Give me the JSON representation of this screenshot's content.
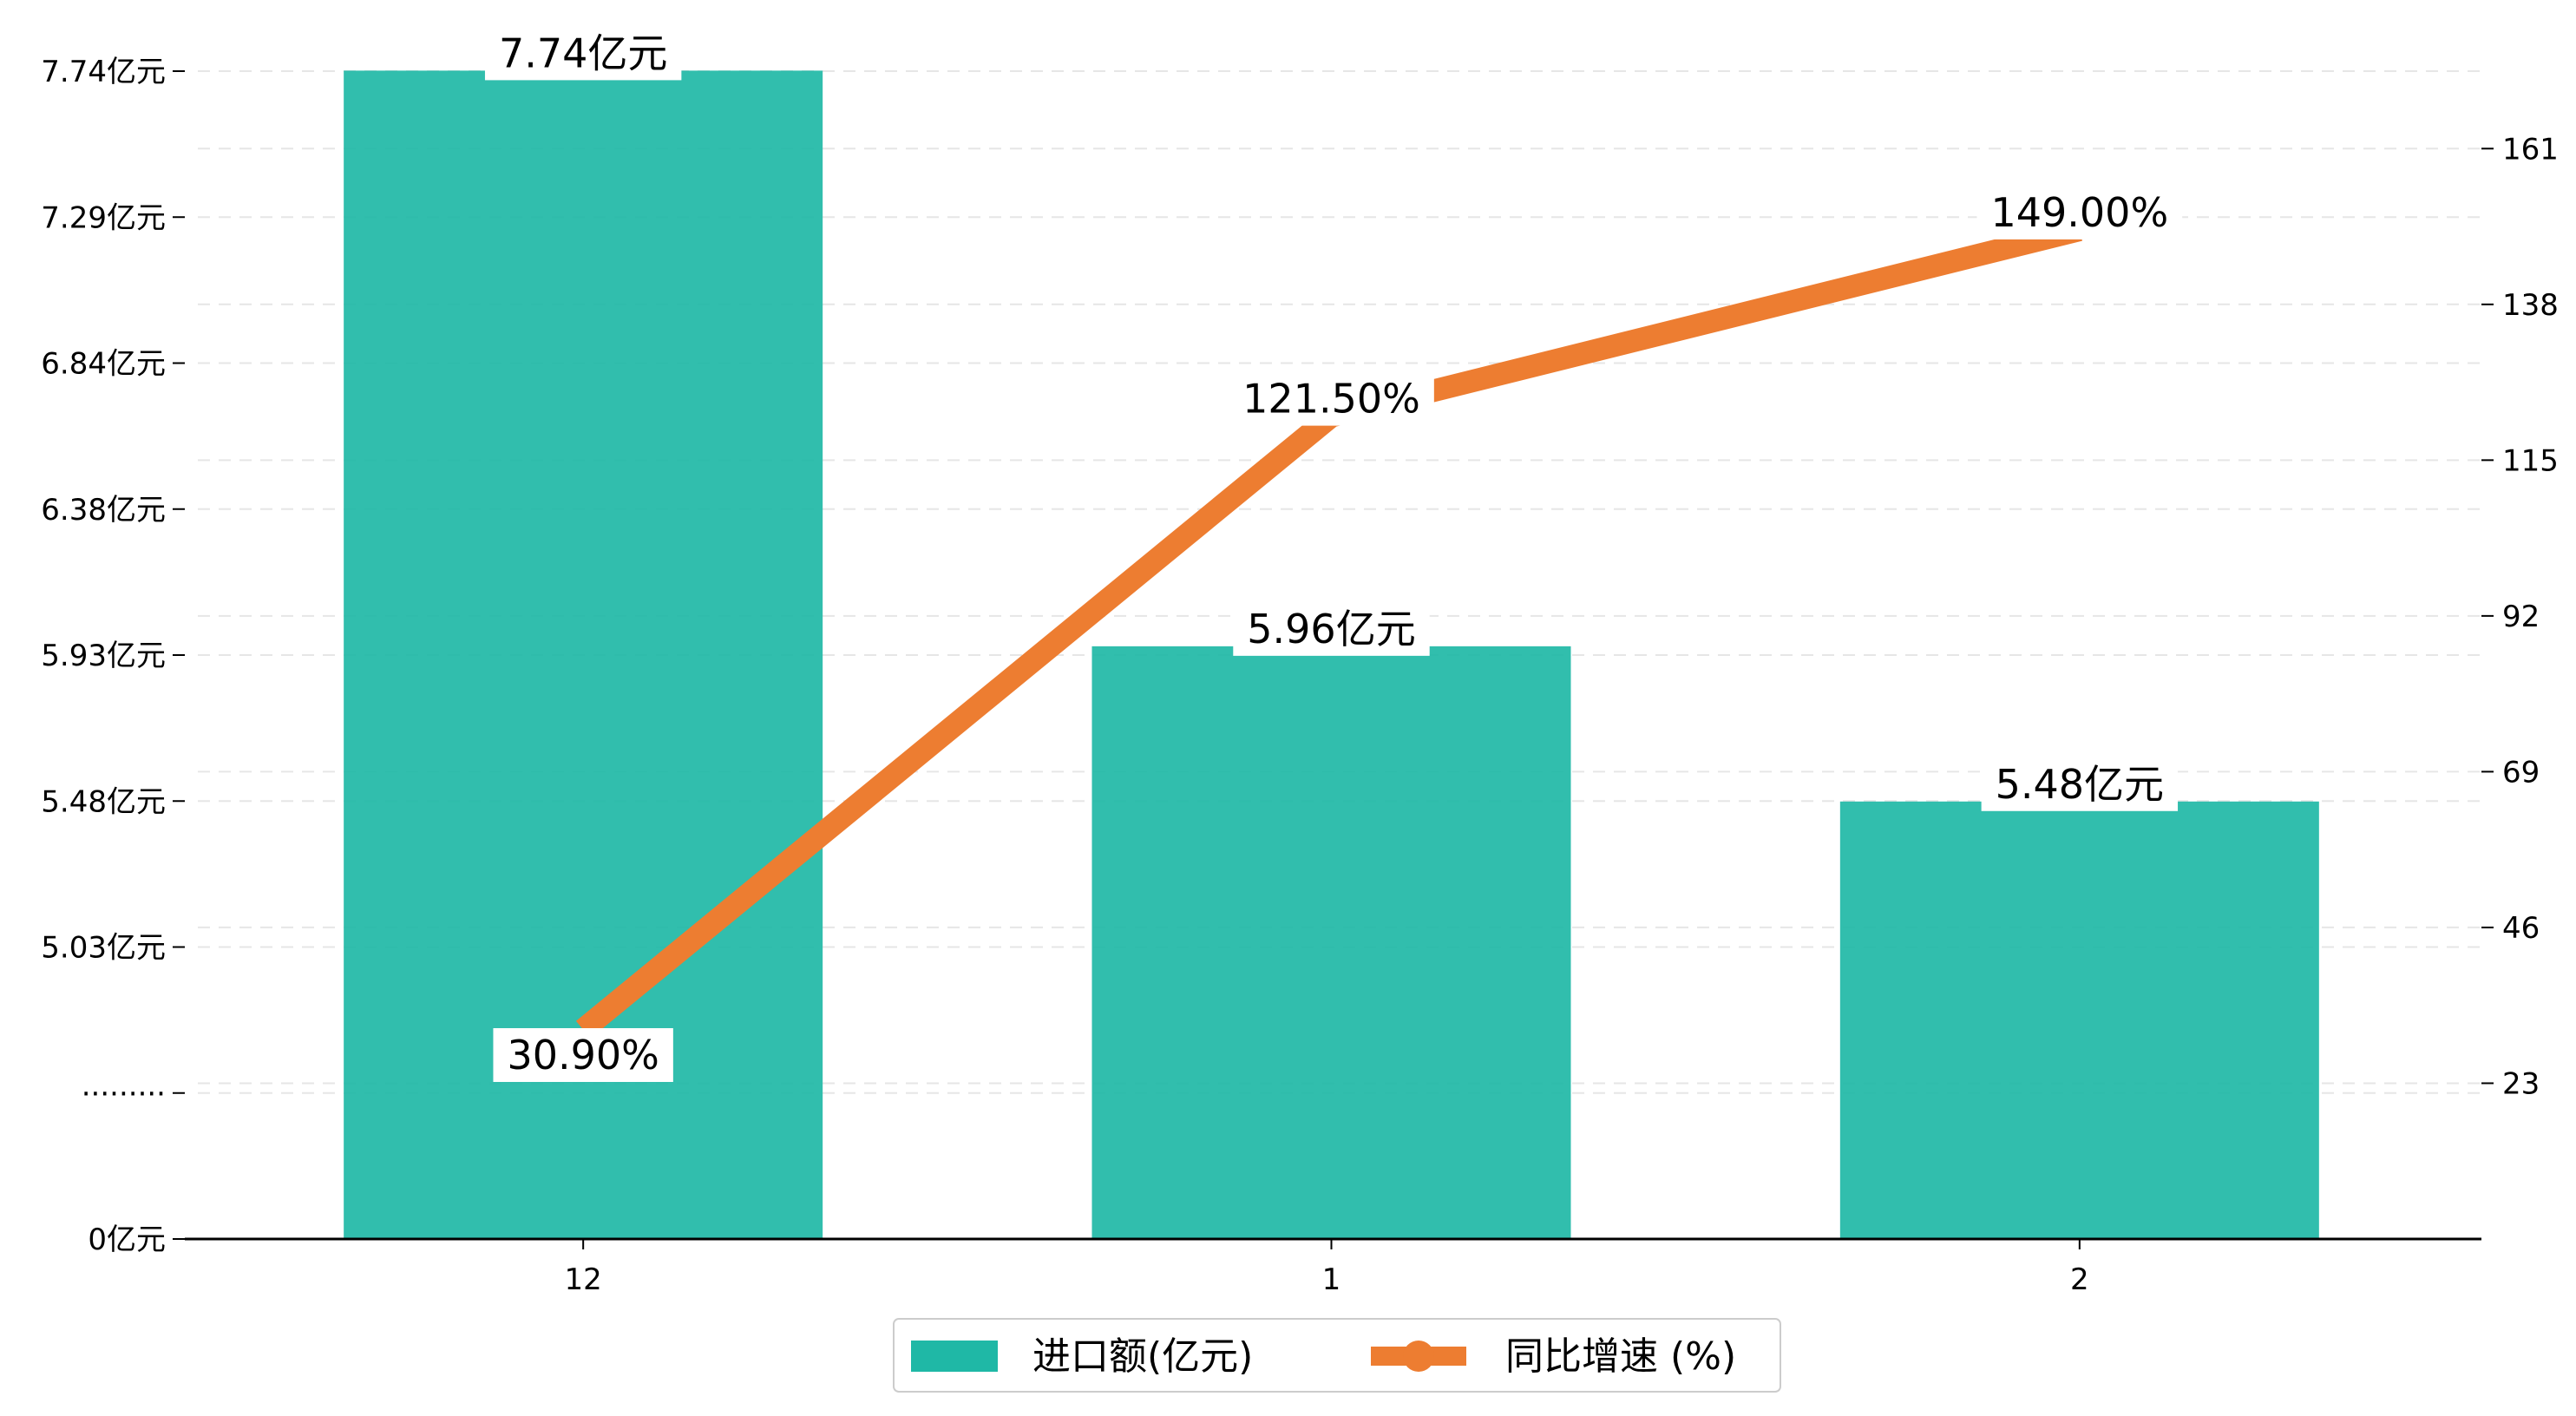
{
  "chart_data": {
    "type": "bar+line",
    "categories": [
      "12",
      "1",
      "2"
    ],
    "series": [
      {
        "name": "进口额(亿元)",
        "kind": "bar",
        "axis": "left",
        "values": [
          7.74,
          5.96,
          5.48
        ],
        "labels": [
          "7.74亿元",
          "5.96亿元",
          "5.48亿元"
        ]
      },
      {
        "name": "同比增速 (%)",
        "kind": "line",
        "axis": "right",
        "values": [
          30.9,
          121.5,
          149.0
        ],
        "labels": [
          "30.90%",
          "121.50%",
          "149.00%"
        ]
      }
    ],
    "left_axis": {
      "ticks": [
        {
          "value": 0,
          "label": "0亿元"
        },
        {
          "value": 1,
          "label": "·········"
        },
        {
          "value": 2,
          "label": "5.03亿元"
        },
        {
          "value": 3,
          "label": "5.48亿元"
        },
        {
          "value": 4,
          "label": "5.93亿元"
        },
        {
          "value": 5,
          "label": "6.38亿元"
        },
        {
          "value": 6,
          "label": "6.84亿元"
        },
        {
          "value": 7,
          "label": "7.29亿元"
        },
        {
          "value": 8,
          "label": "7.74亿元"
        }
      ],
      "broken": true,
      "break_at": 4.58,
      "segment_start": 5.03,
      "segment_step": 0.4514
    },
    "right_axis": {
      "ticks": [
        23,
        46,
        69,
        92,
        115,
        138,
        161
      ],
      "ylim": [
        0,
        175
      ]
    },
    "grid": true,
    "legend_position": "bottom-center",
    "colors": {
      "bar": "#1fb8a6",
      "line": "#ed7d31",
      "grid": "#e6e6e6",
      "axis": "#000000"
    }
  }
}
